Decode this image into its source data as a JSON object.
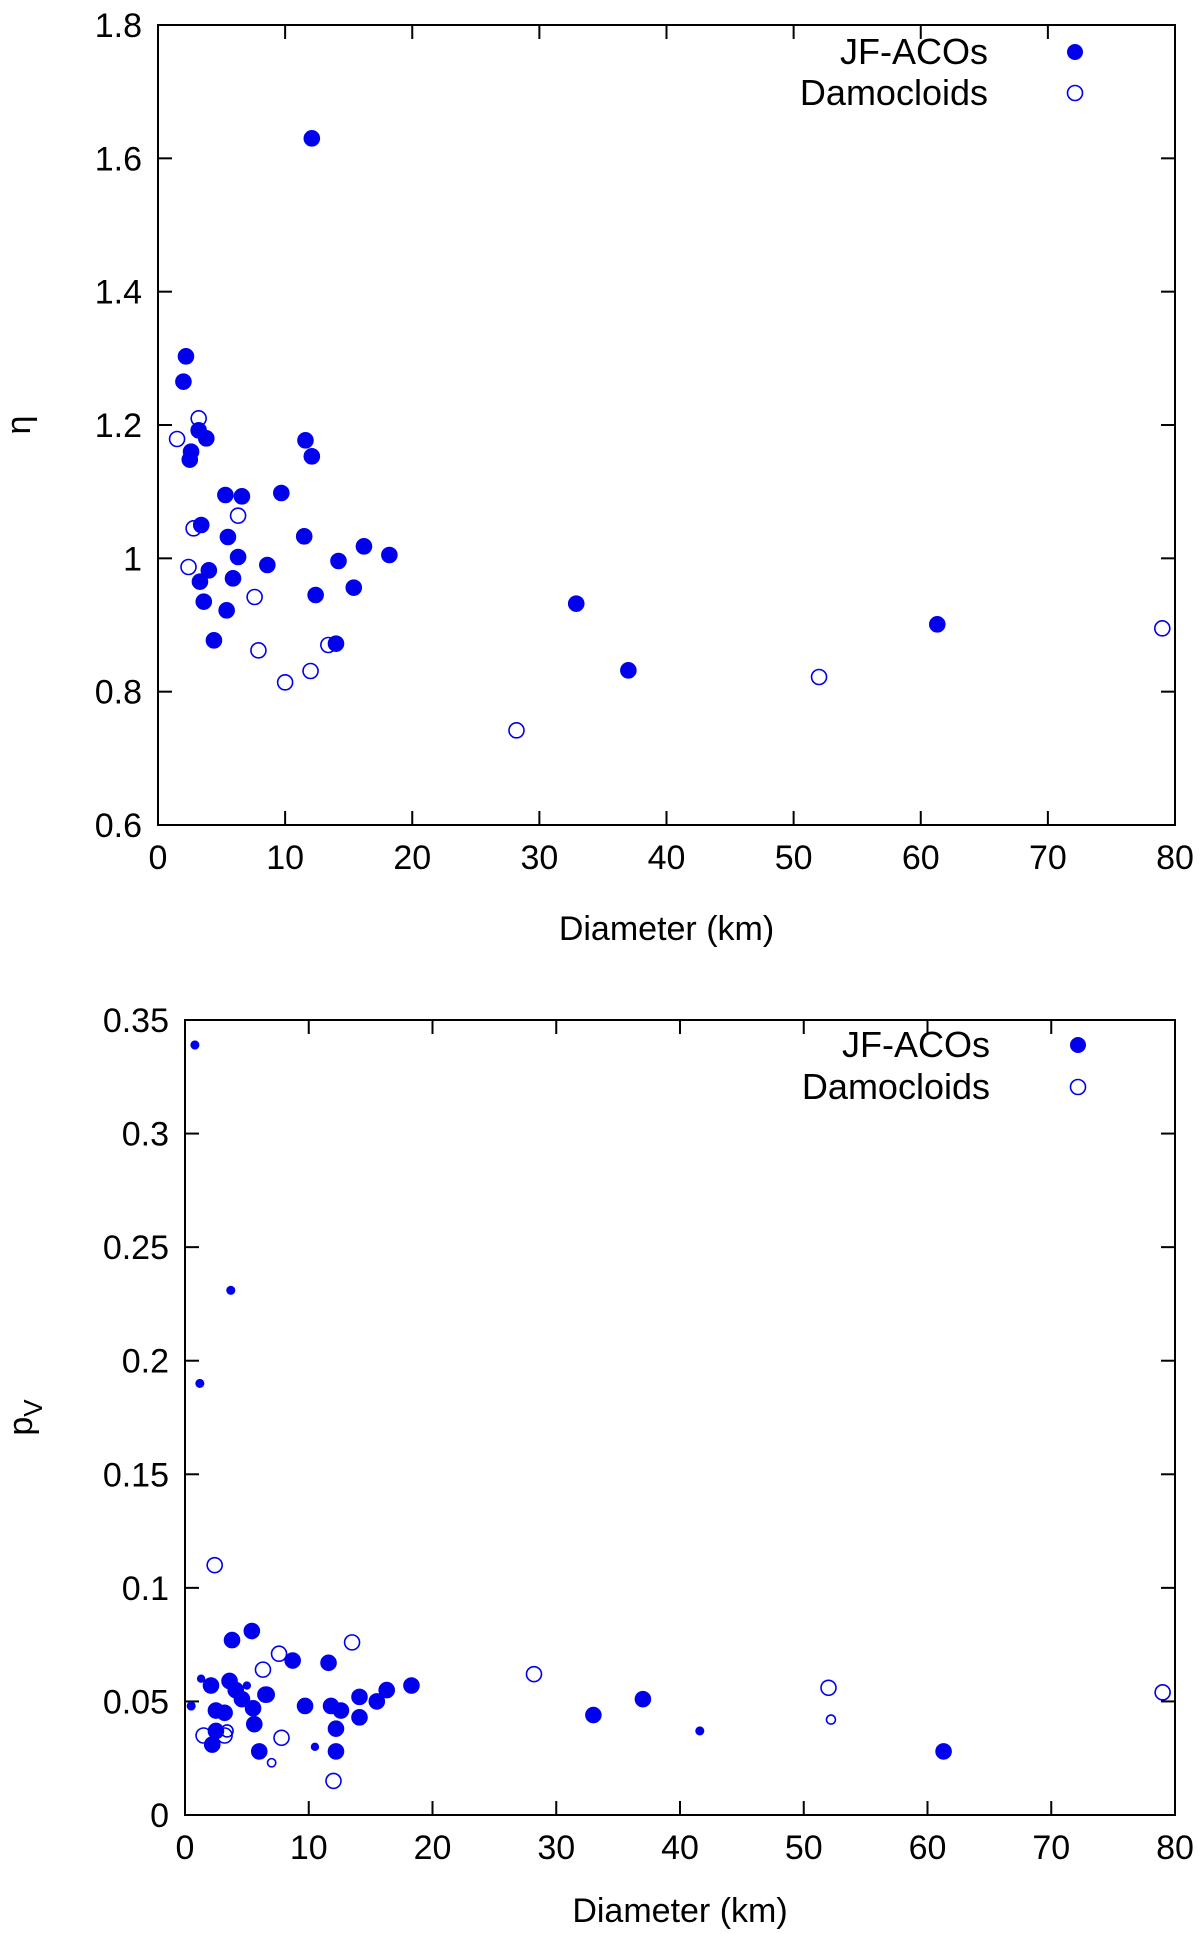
{
  "chart_data": [
    {
      "type": "scatter",
      "title": "",
      "xlabel": "Diameter (km)",
      "ylabel": "η",
      "xlim": [
        0,
        80
      ],
      "ylim": [
        0.6,
        1.8
      ],
      "xticks": [
        "0",
        "10",
        "20",
        "30",
        "40",
        "50",
        "60",
        "70",
        "80"
      ],
      "yticks": [
        "0.6",
        "0.8",
        "1",
        "1.2",
        "1.4",
        "1.6",
        "1.8"
      ],
      "legend": [
        "JF-ACOs",
        "Damocloids"
      ],
      "legend_position": "top-right",
      "series": [
        {
          "name": "JF-ACOs",
          "marker": "filled-circle",
          "color": "#0000ee",
          "points": [
            [
              2.0,
              1.265
            ],
            [
              2.2,
              1.303
            ],
            [
              2.5,
              1.148
            ],
            [
              2.6,
              1.16
            ],
            [
              3.2,
              1.192
            ],
            [
              3.4,
              1.05
            ],
            [
              3.3,
              0.965
            ],
            [
              3.6,
              0.935
            ],
            [
              3.8,
              1.18
            ],
            [
              4.0,
              0.982
            ],
            [
              4.4,
              0.877
            ],
            [
              5.3,
              1.095
            ],
            [
              5.4,
              0.922
            ],
            [
              5.5,
              1.032
            ],
            [
              5.9,
              0.97
            ],
            [
              6.3,
              1.002
            ],
            [
              6.6,
              1.093
            ],
            [
              8.6,
              0.99
            ],
            [
              9.7,
              1.098
            ],
            [
              11.5,
              1.033
            ],
            [
              11.6,
              1.177
            ],
            [
              12.1,
              1.153
            ],
            [
              12.1,
              1.63
            ],
            [
              12.4,
              0.945
            ],
            [
              14.0,
              0.872
            ],
            [
              14.2,
              0.996
            ],
            [
              15.4,
              0.956
            ],
            [
              16.2,
              1.018
            ],
            [
              18.2,
              1.005
            ],
            [
              32.9,
              0.932
            ],
            [
              37.0,
              0.832
            ],
            [
              61.3,
              0.901
            ]
          ]
        },
        {
          "name": "Damocloids",
          "marker": "open-circle",
          "color": "#0000ee",
          "points": [
            [
              1.5,
              1.179
            ],
            [
              2.4,
              0.987
            ],
            [
              2.8,
              1.045
            ],
            [
              3.2,
              1.21
            ],
            [
              6.3,
              1.064
            ],
            [
              7.6,
              0.942
            ],
            [
              7.9,
              0.862
            ],
            [
              10.0,
              0.814
            ],
            [
              12.0,
              0.831
            ],
            [
              13.4,
              0.87
            ],
            [
              28.2,
              0.742
            ],
            [
              52.0,
              0.822
            ],
            [
              79.0,
              0.895
            ]
          ]
        }
      ]
    },
    {
      "type": "scatter",
      "title": "",
      "xlabel": "Diameter (km)",
      "ylabel_main": "p",
      "ylabel_sub": "V",
      "xlim": [
        0,
        80
      ],
      "ylim": [
        0,
        0.35
      ],
      "xticks": [
        "0",
        "10",
        "20",
        "30",
        "40",
        "50",
        "60",
        "70",
        "80"
      ],
      "yticks": [
        "0",
        "0.05",
        "0.1",
        "0.15",
        "0.2",
        "0.25",
        "0.3",
        "0.35"
      ],
      "legend": [
        "JF-ACOs",
        "Damocloids"
      ],
      "legend_position": "top-right",
      "series": [
        {
          "name": "JF-ACOs",
          "marker": "filled-circle",
          "color": "#0000ee",
          "points": [
            [
              0.5,
              0.048,
              0.5
            ],
            [
              0.8,
              0.339,
              0.5
            ],
            [
              1.2,
              0.19,
              0.5
            ],
            [
              1.3,
              0.06,
              0.45
            ],
            [
              3.7,
              0.231,
              0.5
            ],
            [
              2.1,
              0.057,
              1
            ],
            [
              2.2,
              0.031,
              1
            ],
            [
              2.5,
              0.037,
              1
            ],
            [
              2.5,
              0.046,
              1
            ],
            [
              3.2,
              0.045,
              1
            ],
            [
              3.6,
              0.059,
              1
            ],
            [
              3.8,
              0.077,
              1
            ],
            [
              4.1,
              0.055,
              1
            ],
            [
              4.6,
              0.051,
              1
            ],
            [
              5.0,
              0.057,
              0.45
            ],
            [
              5.4,
              0.081,
              1
            ],
            [
              5.5,
              0.047,
              1
            ],
            [
              5.6,
              0.04,
              1
            ],
            [
              6.0,
              0.028,
              1
            ],
            [
              6.5,
              0.053,
              1
            ],
            [
              8.7,
              0.068,
              1
            ],
            [
              9.7,
              0.048,
              1
            ],
            [
              10.5,
              0.03,
              0.45
            ],
            [
              11.6,
              0.067,
              1
            ],
            [
              11.8,
              0.048,
              1
            ],
            [
              12.2,
              0.038,
              1
            ],
            [
              12.2,
              0.028,
              1
            ],
            [
              12.6,
              0.046,
              1
            ],
            [
              14.1,
              0.043,
              1
            ],
            [
              14.1,
              0.052,
              1
            ],
            [
              15.5,
              0.05,
              1
            ],
            [
              16.3,
              0.055,
              1
            ],
            [
              18.3,
              0.057,
              1
            ],
            [
              33.0,
              0.044,
              1
            ],
            [
              37.0,
              0.051,
              1
            ],
            [
              41.6,
              0.037,
              0.5
            ],
            [
              61.3,
              0.028,
              1
            ]
          ]
        },
        {
          "name": "Damocloids",
          "marker": "open-circle",
          "color": "#0000ee",
          "points": [
            [
              1.5,
              0.035,
              1
            ],
            [
              2.4,
              0.11,
              1
            ],
            [
              3.2,
              0.035,
              1
            ],
            [
              3.4,
              0.037,
              0.8
            ],
            [
              6.3,
              0.064,
              1
            ],
            [
              6.6,
              0.053,
              1
            ],
            [
              7.0,
              0.023,
              0.55
            ],
            [
              7.6,
              0.071,
              1
            ],
            [
              7.8,
              0.034,
              1
            ],
            [
              12.0,
              0.015,
              1
            ],
            [
              13.5,
              0.076,
              1
            ],
            [
              28.2,
              0.062,
              1
            ],
            [
              52.0,
              0.056,
              1
            ],
            [
              52.2,
              0.042,
              0.6
            ],
            [
              79.0,
              0.054,
              1
            ]
          ]
        }
      ]
    }
  ]
}
